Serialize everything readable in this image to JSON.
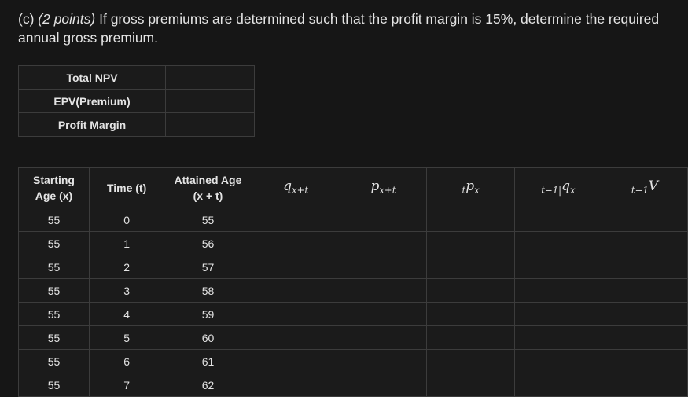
{
  "question": {
    "label": "(c)",
    "points": "(2 points)",
    "text": "If gross premiums are determined such that the profit margin is 15%, determine the required annual gross premium."
  },
  "npv_table": {
    "rows": [
      {
        "label": "Total NPV",
        "value": ""
      },
      {
        "label": "EPV(Premium)",
        "value": ""
      },
      {
        "label": "Profit Margin",
        "value": ""
      }
    ]
  },
  "main_table": {
    "headers": {
      "starting_age_line1": "Starting",
      "starting_age_line2": "Age (x)",
      "time": "Time (t)",
      "attained_age_line1": "Attained Age",
      "attained_age_line2": "(x + t)",
      "q": "q",
      "q_sub": "x+t",
      "p": "p",
      "p_sub": "x+t",
      "tp_pre": "t",
      "tp_main": "p",
      "tp_sub": "x",
      "defq_pre": "t−1|",
      "defq_main": "q",
      "defq_sub": "x",
      "v_pre": "t−1",
      "v_main": "V"
    },
    "rows": [
      {
        "start": "55",
        "time": "0",
        "attained": "55"
      },
      {
        "start": "55",
        "time": "1",
        "attained": "56"
      },
      {
        "start": "55",
        "time": "2",
        "attained": "57"
      },
      {
        "start": "55",
        "time": "3",
        "attained": "58"
      },
      {
        "start": "55",
        "time": "4",
        "attained": "59"
      },
      {
        "start": "55",
        "time": "5",
        "attained": "60"
      },
      {
        "start": "55",
        "time": "6",
        "attained": "61"
      },
      {
        "start": "55",
        "time": "7",
        "attained": "62"
      }
    ]
  }
}
